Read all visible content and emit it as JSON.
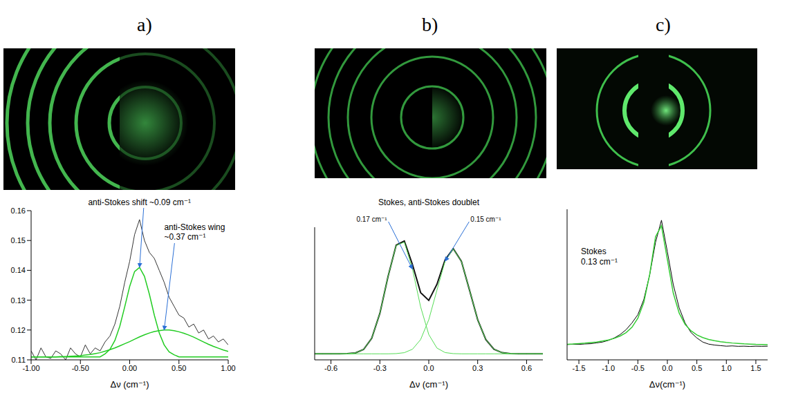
{
  "chart_data": [
    {
      "type": "line",
      "title": "a)",
      "xlabel": "Δν (cm⁻¹)",
      "x": [
        -1,
        -0.95,
        -0.9,
        -0.85,
        -0.8,
        -0.75,
        -0.7,
        -0.65,
        -0.6,
        -0.55,
        -0.5,
        -0.45,
        -0.4,
        -0.35,
        -0.3,
        -0.25,
        -0.2,
        -0.15,
        -0.1,
        -0.05,
        0,
        0.05,
        0.1,
        0.15,
        0.2,
        0.25,
        0.3,
        0.35,
        0.4,
        0.45,
        0.5,
        0.55,
        0.6,
        0.65,
        0.7,
        0.75,
        0.8,
        0.85,
        0.9,
        0.95,
        1
      ],
      "series": [
        {
          "color": "#000000",
          "values": [
            0.113,
            0.11,
            0.114,
            0.111,
            0.1105,
            0.113,
            0.112,
            0.11,
            0.114,
            0.112,
            0.111,
            0.115,
            0.112,
            0.114,
            0.113,
            0.116,
            0.118,
            0.122,
            0.128,
            0.136,
            0.143,
            0.152,
            0.157,
            0.15,
            0.146,
            0.144,
            0.14,
            0.136,
            0.131,
            0.128,
            0.125,
            0.124,
            0.121,
            0.122,
            0.119,
            0.12,
            0.117,
            0.118,
            0.116,
            0.117,
            0.115
          ]
        },
        {
          "color": "#22cc22",
          "values": [
            0.111,
            0.111,
            0.111,
            0.111,
            0.111,
            0.111,
            0.111,
            0.111,
            0.111,
            0.111,
            0.111,
            0.111,
            0.111,
            0.111,
            0.111,
            0.112,
            0.1135,
            0.1165,
            0.1213,
            0.1278,
            0.1346,
            0.1396,
            0.141,
            0.138,
            0.132,
            0.125,
            0.119,
            0.115,
            0.1127,
            0.1117,
            0.111,
            0.111,
            0.111,
            0.111,
            0.111,
            0.111,
            0.111,
            0.111,
            0.111,
            0.111,
            0.111
          ]
        },
        {
          "color": "#22cc22",
          "values": [
            0.111,
            0.111,
            0.111,
            0.111,
            0.111,
            0.111,
            0.1111,
            0.1111,
            0.1112,
            0.1113,
            0.1114,
            0.1116,
            0.1118,
            0.1121,
            0.1124,
            0.1129,
            0.1134,
            0.114,
            0.1147,
            0.1154,
            0.1161,
            0.1169,
            0.1177,
            0.1184,
            0.119,
            0.1195,
            0.1198,
            0.12,
            0.12,
            0.1198,
            0.1194,
            0.1189,
            0.1183,
            0.1176,
            0.1168,
            0.116,
            0.1152,
            0.1145,
            0.1139,
            0.1133,
            0.1128
          ]
        }
      ],
      "xlim": [
        -1,
        1
      ],
      "xticks": [
        {
          "value": -1,
          "label": "-1.00"
        },
        {
          "value": -0.5,
          "label": "-0.50"
        },
        {
          "value": 0,
          "label": "0.00"
        },
        {
          "value": 0.5,
          "label": "0.50"
        },
        {
          "value": 1,
          "label": "1.00"
        }
      ],
      "ylim": [
        0.11,
        0.16
      ],
      "yticks": [
        0.11,
        0.12,
        0.13,
        0.14,
        0.15,
        0.16
      ],
      "annotations": [
        "anti-Stokes shift ~0.09 cm⁻¹",
        "anti-Stokes wing ~0.37 cm⁻¹"
      ]
    },
    {
      "type": "line",
      "title": "b)",
      "xlabel": "Δν (cm⁻¹)",
      "x": [
        -0.7,
        -0.65,
        -0.6,
        -0.55,
        -0.5,
        -0.45,
        -0.4,
        -0.35,
        -0.3,
        -0.25,
        -0.2,
        -0.15,
        -0.1,
        -0.05,
        0,
        0.05,
        0.1,
        0.15,
        0.2,
        0.25,
        0.3,
        0.35,
        0.4,
        0.45,
        0.5,
        0.55,
        0.6,
        0.65,
        0.7
      ],
      "series": [
        {
          "color": "#111111",
          "values": [
            0.05,
            0.05,
            0.05,
            0.05,
            0.0512,
            0.0575,
            0.086,
            0.179,
            0.386,
            0.69,
            0.951,
            0.986,
            0.791,
            0.558,
            0.493,
            0.626,
            0.829,
            0.922,
            0.818,
            0.578,
            0.333,
            0.168,
            0.088,
            0.0596,
            0.0519,
            0.05,
            0.05,
            0.05,
            0.05
          ]
        },
        {
          "color": "#55dd55",
          "values": [
            0.05,
            0.05,
            0.05,
            0.05,
            0.0512,
            0.0575,
            0.086,
            0.179,
            0.386,
            0.69,
            0.949,
            0.976,
            0.753,
            0.44,
            0.21,
            0.098,
            0.0605,
            0.0518,
            0.05,
            0.05,
            0.05,
            0.05,
            0.05,
            0.05,
            0.05,
            0.05,
            0.05,
            0.05,
            0.05
          ]
        },
        {
          "color": "#55dd55",
          "values": [
            0.05,
            0.05,
            0.05,
            0.05,
            0.05,
            0.05,
            0.05,
            0.05,
            0.05,
            0.05,
            0.0519,
            0.0596,
            0.088,
            0.168,
            0.333,
            0.578,
            0.818,
            0.92,
            0.818,
            0.578,
            0.333,
            0.168,
            0.088,
            0.0596,
            0.0519,
            0.05,
            0.05,
            0.05,
            0.05
          ]
        }
      ],
      "xlim": [
        -0.7,
        0.7
      ],
      "xticks": [
        -0.6,
        -0.3,
        {
          "value": 0,
          "label": "0.0"
        },
        0.3,
        0.6
      ],
      "ylim": [
        0,
        1.1
      ],
      "tick_labels": "x",
      "annotations": [
        "Stokes, anti-Stokes doublet",
        "0.17 cm⁻¹",
        "0.15 cm⁻¹"
      ]
    },
    {
      "type": "line",
      "title": "c)",
      "xlabel": "Δν(cm⁻¹)",
      "x": [
        -1.7,
        -1.6,
        -1.5,
        -1.4,
        -1.3,
        -1.2,
        -1.1,
        -1,
        -0.9,
        -0.8,
        -0.7,
        -0.6,
        -0.5,
        -0.4,
        -0.3,
        -0.2,
        -0.1,
        0,
        0.1,
        0.2,
        0.3,
        0.4,
        0.5,
        0.6,
        0.7,
        0.8,
        0.9,
        1,
        1.1,
        1.2,
        1.3,
        1.4,
        1.5,
        1.6,
        1.7
      ],
      "series": [
        {
          "color": "#000000",
          "values": [
            0.112,
            0.114,
            0.113,
            0.116,
            0.118,
            0.124,
            0.13,
            0.142,
            0.16,
            0.185,
            0.22,
            0.27,
            0.33,
            0.44,
            0.62,
            0.86,
            1.02,
            0.79,
            0.55,
            0.38,
            0.27,
            0.2,
            0.16,
            0.13,
            0.115,
            0.108,
            0.104,
            0.1,
            0.102,
            0.099,
            0.1,
            0.098,
            0.1,
            0.099,
            0.1
          ]
        },
        {
          "color": "#33cc33",
          "values": [
            0.114,
            0.116,
            0.119,
            0.122,
            0.126,
            0.13,
            0.137,
            0.145,
            0.157,
            0.174,
            0.199,
            0.238,
            0.304,
            0.419,
            0.623,
            0.9,
            0.98,
            0.733,
            0.488,
            0.342,
            0.26,
            0.212,
            0.182,
            0.163,
            0.149,
            0.14,
            0.133,
            0.127,
            0.123,
            0.12,
            0.117,
            0.115,
            0.113,
            0.112,
            0.111
          ]
        }
      ],
      "xlim": [
        -1.7,
        1.7
      ],
      "xticks": [
        -1.5,
        {
          "value": -1,
          "label": "-1.0"
        },
        -0.5,
        {
          "value": 0,
          "label": "0.0"
        },
        0.5,
        {
          "value": 1,
          "label": "1.0"
        },
        1.5
      ],
      "ylim": [
        0,
        1.1
      ],
      "tick_labels": "x",
      "annotations": [
        "Stokes",
        "0.13 cm⁻¹"
      ]
    }
  ]
}
